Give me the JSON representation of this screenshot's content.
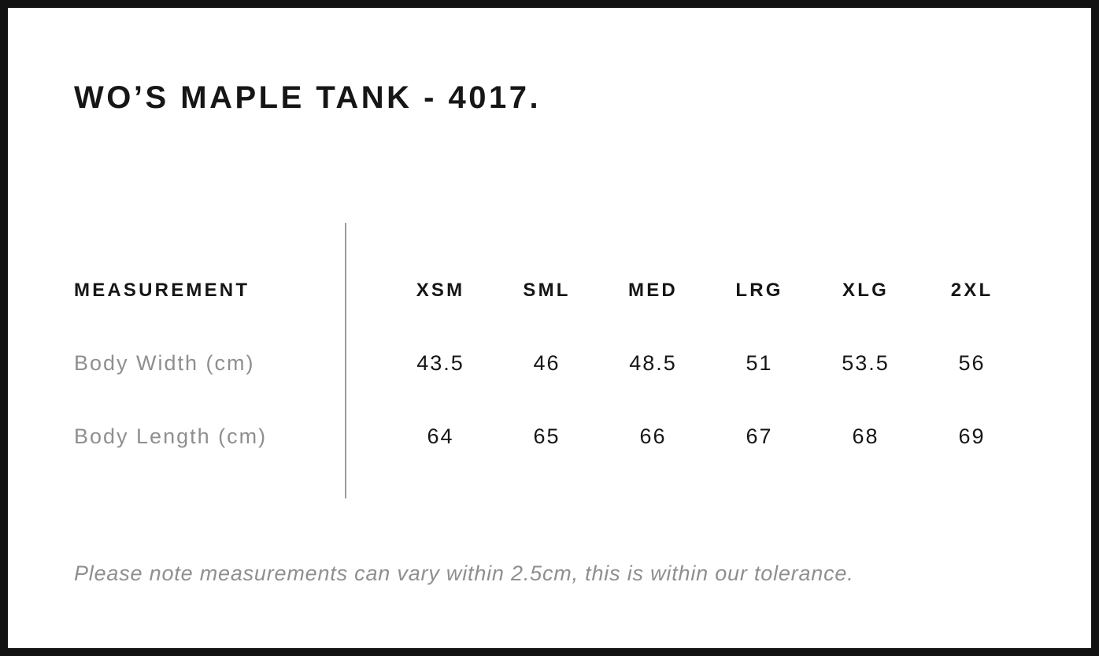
{
  "header": {
    "title": "WO’S MAPLE TANK - 4017."
  },
  "size_chart": {
    "measurement_header": "MEASUREMENT",
    "size_headers": [
      "XSM",
      "SML",
      "MED",
      "LRG",
      "XLG",
      "2XL"
    ],
    "rows": [
      {
        "label": "Body Width (cm)",
        "values": [
          "43.5",
          "46",
          "48.5",
          "51",
          "53.5",
          "56"
        ]
      },
      {
        "label": "Body Length (cm)",
        "values": [
          "64",
          "65",
          "66",
          "67",
          "68",
          "69"
        ]
      }
    ]
  },
  "footer": {
    "note": "Please note measurements can vary within 2.5cm, this is within our tolerance."
  },
  "colors": {
    "text_primary": "#161616",
    "text_muted": "#8f8f8f",
    "divider": "#9b9b9b",
    "border": "#121212",
    "background": "#ffffff"
  }
}
